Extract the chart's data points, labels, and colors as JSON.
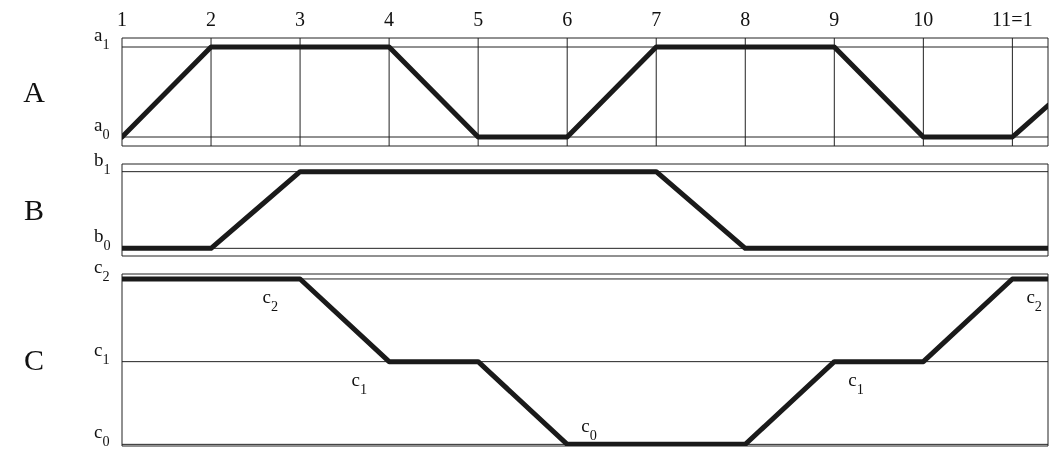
{
  "chart_data": [
    {
      "type": "line",
      "ylabel": "A",
      "x": [
        1,
        2,
        4,
        5,
        6,
        7,
        9,
        10,
        11,
        11.4
      ],
      "values": [
        0,
        1,
        1,
        0,
        0,
        1,
        1,
        0,
        0,
        0.35
      ],
      "color": "#1a1a1a",
      "line_style": "solid",
      "grid": true,
      "xlim": [
        1,
        11.4
      ],
      "xticks": [
        1,
        2,
        3,
        4,
        5,
        6,
        7,
        8,
        9,
        10,
        {
          "value": 11,
          "label": "11=1"
        }
      ],
      "ylim": [
        -0.1,
        1.1
      ],
      "yticks": [
        {
          "value": 0,
          "label": "a$_{0}$"
        },
        {
          "value": 1,
          "label": "a$_{1}$"
        }
      ]
    },
    {
      "type": "line",
      "ylabel": "B",
      "x": [
        1,
        2,
        3,
        7,
        8,
        11.4
      ],
      "values": [
        0,
        0,
        1,
        1,
        0,
        0
      ],
      "color": "#1a1a1a",
      "line_style": "solid",
      "grid": true,
      "tick_labels": "y",
      "xlim": [
        1,
        11.4
      ],
      "xticks": [
        1,
        2,
        3,
        4,
        5,
        6,
        7,
        8,
        9,
        10,
        11
      ],
      "ylim": [
        -0.1,
        1.1
      ],
      "yticks": [
        {
          "value": 0,
          "label": "b$_{0}$"
        },
        {
          "value": 1,
          "label": "b$_{1}$"
        }
      ]
    },
    {
      "type": "line",
      "ylabel": "C",
      "x": [
        1,
        3,
        4,
        5,
        6,
        8,
        9,
        10,
        11,
        11.4
      ],
      "values": [
        2,
        2,
        1,
        1,
        0,
        0,
        1,
        1,
        2,
        2
      ],
      "color": "#1a1a1a",
      "line_style": "solid",
      "grid": true,
      "tick_labels": "y",
      "xlim": [
        1,
        11.4
      ],
      "xticks": [
        1,
        2,
        3,
        4,
        5,
        6,
        7,
        8,
        9,
        10,
        11
      ],
      "ylim": [
        -0.02,
        2.06
      ],
      "yticks": [
        {
          "value": 0,
          "label": "c$_{0}$"
        },
        {
          "value": 1,
          "label": "c$_{1}$"
        },
        {
          "value": 2,
          "label": "c$_{2}$"
        }
      ],
      "annotations": [
        {
          "text": "c$_{2}$",
          "x": 3,
          "y": 2
        },
        {
          "text": "c$_{1}$",
          "x": 4,
          "y": 1
        },
        {
          "text": "c$_{0}$",
          "x": 6,
          "y": 0
        },
        {
          "text": "c$_{1}$",
          "x": 9,
          "y": 1
        },
        {
          "text": "c$_{2}$",
          "x": 11,
          "y": 2
        }
      ]
    }
  ]
}
